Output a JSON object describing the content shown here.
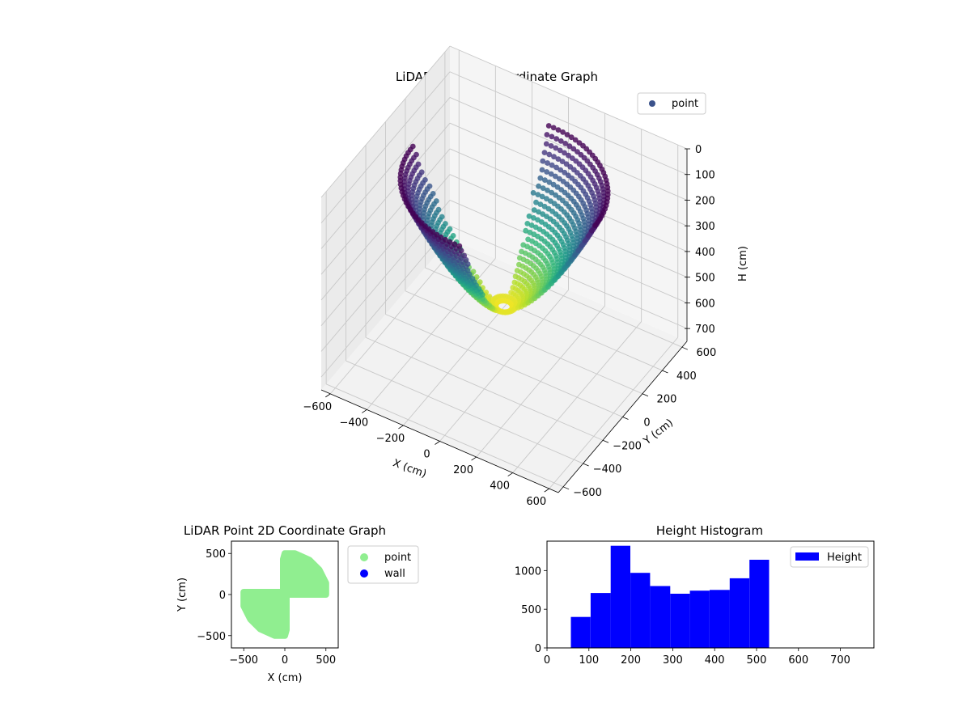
{
  "chart_data": [
    {
      "type": "scatter",
      "projection": "3d",
      "title": "LiDAR Point 3D Coordinate Graph",
      "xlabel": "X (cm)",
      "ylabel": "Y (cm)",
      "zlabel": "H (cm)",
      "xticks": [
        "−600",
        "−400",
        "−200",
        "0",
        "200",
        "400",
        "600"
      ],
      "yticks": [
        "−600",
        "−400",
        "−200",
        "0",
        "200",
        "400",
        "600"
      ],
      "zticks": [
        "0",
        "100",
        "200",
        "300",
        "400",
        "500",
        "600",
        "700"
      ],
      "xlim": [
        -650,
        650
      ],
      "ylim": [
        -650,
        650
      ],
      "zlim": [
        0,
        750
      ],
      "z_inverted": true,
      "grid": true,
      "colormap": "viridis",
      "legend": {
        "placement": "top-right",
        "entries": [
          {
            "label": "point",
            "color": "#3b528b"
          }
        ]
      },
      "series": [
        {
          "name": "point",
          "shape": "bowl",
          "radius_range": [
            0,
            500
          ],
          "height_range": [
            50,
            530
          ]
        }
      ]
    },
    {
      "type": "scatter",
      "title": "LiDAR Point 2D Coordinate Graph",
      "xlabel": "X (cm)",
      "ylabel": "Y (cm)",
      "xticks": [
        "−500",
        "0",
        "500"
      ],
      "yticks": [
        "−500",
        "0",
        "500"
      ],
      "xlim": [
        -650,
        650
      ],
      "ylim": [
        -650,
        650
      ],
      "legend": {
        "placement": "outside-right",
        "entries": [
          {
            "label": "point",
            "color": "#90ee90"
          },
          {
            "label": "wall",
            "color": "#0000ff"
          }
        ]
      },
      "series": [
        {
          "name": "point",
          "color": "#90ee90",
          "radius": 500,
          "region": [
            [
              -500,
              0
            ],
            [
              -500,
              30
            ],
            [
              -20,
              30
            ],
            [
              -20,
              430
            ],
            [
              0,
              500
            ],
            [
              120,
              500
            ],
            [
              300,
              420
            ],
            [
              420,
              300
            ],
            [
              500,
              140
            ],
            [
              500,
              0
            ],
            [
              20,
              0
            ],
            [
              20,
              -430
            ],
            [
              0,
              -500
            ],
            [
              -120,
              -500
            ],
            [
              -300,
              -420
            ],
            [
              -420,
              -300
            ],
            [
              -500,
              -140
            ]
          ]
        }
      ]
    },
    {
      "type": "bar",
      "subtype": "histogram",
      "title": "Height Histogram",
      "xlim": [
        0,
        780
      ],
      "ylim": [
        0,
        1380
      ],
      "xticks": [
        "0",
        "100",
        "200",
        "300",
        "400",
        "500",
        "600",
        "700"
      ],
      "yticks": [
        "0",
        "500",
        "1000"
      ],
      "legend": {
        "placement": "top-right",
        "entries": [
          {
            "label": "Height",
            "color": "#0000ff"
          }
        ]
      },
      "series": [
        {
          "name": "Height",
          "color": "#0000ff",
          "bin_edges": [
            57,
            104,
            152,
            199,
            246,
            294,
            341,
            388,
            436,
            483,
            530
          ],
          "values": [
            400,
            710,
            1320,
            970,
            800,
            700,
            740,
            750,
            900,
            1140
          ]
        }
      ]
    }
  ]
}
